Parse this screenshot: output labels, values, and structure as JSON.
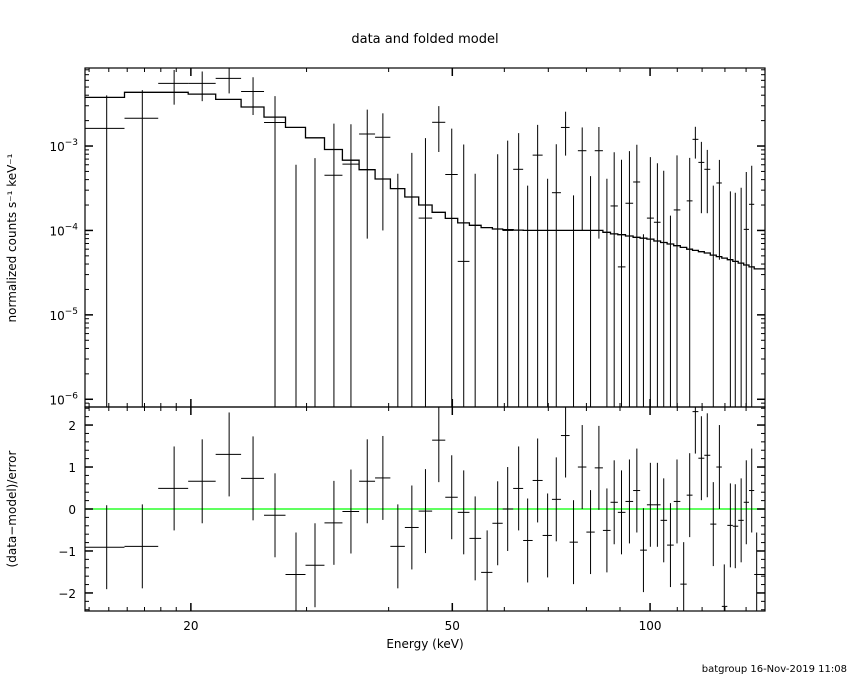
{
  "chart_data": [
    {
      "type": "scatter",
      "panel": "top",
      "title": "data and folded model",
      "xlabel": "Energy (keV)",
      "ylabel": "normalized counts s⁻¹ keV⁻¹",
      "x_scale": "log",
      "y_scale": "log",
      "xlim": [
        13.8,
        149.6
      ],
      "ylim": [
        8.1e-07,
        0.0084
      ],
      "x_ticks": [
        {
          "value": 20,
          "label": "20"
        },
        {
          "value": 50,
          "label": "50"
        },
        {
          "value": 100,
          "label": "100"
        }
      ],
      "y_ticks": [
        {
          "value": 0.001,
          "base": "10",
          "exp": "−3"
        },
        {
          "value": 0.0001,
          "base": "10",
          "exp": "−4"
        },
        {
          "value": 1e-05,
          "base": "10",
          "exp": "−5"
        },
        {
          "value": 1e-06,
          "base": "10",
          "exp": "−6"
        }
      ],
      "energy_keV": [
        14.89,
        16.87,
        18.86,
        20.81,
        22.87,
        24.87,
        26.86,
        28.91,
        30.9,
        33.02,
        35.05,
        37.11,
        39.2,
        41.31,
        43.39,
        45.51,
        47.69,
        49.9,
        52.04,
        54.17,
        56.49,
        58.62,
        60.71,
        63.09,
        65.11,
        67.43,
        69.83,
        71.98,
        74.37,
        76.47,
        78.83,
        81.17,
        83.58,
        85.96,
        88.18,
        90.47,
        93.02,
        95.47,
        97.7,
        100.1,
        102.6,
        104.9,
        107.4,
        109.9,
        112.5,
        114.9,
        117.2,
        119.7,
        122.2,
        124.8,
        127.5,
        129.7,
        132.5,
        134.8,
        137.6,
        140.1,
        142.8,
        145.3
      ],
      "data": [
        0.00162,
        0.00213,
        0.00552,
        0.00552,
        0.00632,
        0.00443,
        0.0019,
        -0.0013,
        -0.00084,
        0.00045,
        0.00061,
        0.00139,
        0.00127,
        -0.00093,
        -0.0002,
        0.00014,
        0.00191,
        0.00046,
        4.3e-05,
        -0.0007,
        -0.00155,
        -0.00026,
        0.0001,
        0.00053,
        -0.00064,
        0.00078,
        -0.00042,
        0.00028,
        0.00166,
        -0.00052,
        0.00088,
        -0.00032,
        0.00088,
        -0.00022,
        0.000195,
        3.7e-05,
        0.00021,
        0.000375,
        -0.00053,
        0.00014,
        0.000125,
        -9e-05,
        -0.00045,
        0.000175,
        -0.00094,
        0.000224,
        0.0012,
        0.00064,
        0.00053,
        -0.00011,
        0.000365,
        -0.00088,
        -0.00011,
        -0.00012,
        -6e-05,
        0.000103,
        0.000204,
        -0.00051
      ],
      "error": [
        0.00236,
        0.00247,
        0.00243,
        0.00212,
        0.00212,
        0.0021,
        0.002,
        0.0019,
        0.00156,
        0.00139,
        0.0012,
        0.00131,
        0.00117,
        0.0014,
        0.00103,
        0.0011,
        0.00106,
        0.00115,
        0.001,
        0.00117,
        0.0011,
        0.00106,
        0.00106,
        0.00089,
        0.00098,
        0.001,
        0.00083,
        0.00077,
        0.00089,
        0.00078,
        0.00078,
        0.00076,
        0.0008,
        0.00063,
        0.00065,
        0.00065,
        0.00066,
        0.00066,
        0.00062,
        0.0006,
        0.0005,
        0.0006,
        0.0006,
        0.0006,
        0.00056,
        0.0005,
        0.00049,
        0.00048,
        0.00037,
        0.00045,
        0.00032,
        0.0004,
        0.0004,
        0.0004,
        0.00038,
        0.00039,
        0.00038,
        0.00035
      ],
      "model": [
        0.00377,
        0.00433,
        0.00433,
        0.00412,
        0.00357,
        0.0029,
        0.0022,
        0.00166,
        0.00125,
        0.00091,
        0.00068,
        0.000524,
        0.000407,
        0.000313,
        0.000249,
        0.0002,
        0.000164,
        0.000139,
        0.000123,
        0.000115,
        0.000108,
        0.000104,
        0.000102,
        0.000101,
        0.0001,
        0.0001,
        0.0001,
        0.0001,
        0.0001,
        0.0001,
        0.0001,
        0.0001,
        0.0001,
        9.5e-05,
        9.1e-05,
        8.9e-05,
        8.6e-05,
        8.3e-05,
        8.1e-05,
        7.9e-05,
        7.5e-05,
        7.2e-05,
        6.9e-05,
        6.6e-05,
        6.3e-05,
        6e-05,
        5.8e-05,
        5.6e-05,
        5.4e-05,
        5.1e-05,
        4.9e-05,
        4.7e-05,
        4.5e-05,
        4.3e-05,
        4.1e-05,
        3.9e-05,
        3.7e-05,
        3.5e-05
      ]
    },
    {
      "type": "scatter",
      "panel": "bottom",
      "xlabel": "Energy (keV)",
      "ylabel": "(data−model)/error",
      "x_scale": "log",
      "xlim": [
        13.8,
        149.6
      ],
      "ylim": [
        -2.43,
        2.43
      ],
      "y_ticks": [
        {
          "value": -2,
          "label": "−2"
        },
        {
          "value": -1,
          "label": "−1"
        },
        {
          "value": 0,
          "label": "0"
        },
        {
          "value": 1,
          "label": "1"
        },
        {
          "value": 2,
          "label": "2"
        }
      ],
      "reference_line": 0,
      "residual": [
        -0.91,
        -0.89,
        0.49,
        0.66,
        1.3,
        0.73,
        -0.15,
        -1.56,
        -1.34,
        -0.33,
        -0.06,
        0.66,
        0.74,
        -0.89,
        -0.44,
        -0.05,
        1.64,
        0.28,
        -0.08,
        -0.7,
        -1.51,
        -0.34,
        0.0,
        0.49,
        -0.75,
        0.68,
        -0.63,
        0.23,
        1.75,
        -0.79,
        1.0,
        -0.55,
        0.98,
        -0.51,
        0.16,
        -0.08,
        0.18,
        0.44,
        -0.98,
        0.1,
        0.1,
        -0.27,
        -0.86,
        0.18,
        -1.79,
        0.33,
        2.32,
        1.21,
        1.28,
        -0.36,
        1.0,
        -2.32,
        -0.39,
        -0.41,
        -0.27,
        0.16,
        0.44,
        -1.56
      ],
      "residual_error": 1
    }
  ],
  "footer": "batgroup 16-Nov-2019 11:08",
  "colors": {
    "data": "#000000",
    "model": "#000000",
    "zero_line": "#00ff00",
    "axes": "#000000"
  }
}
